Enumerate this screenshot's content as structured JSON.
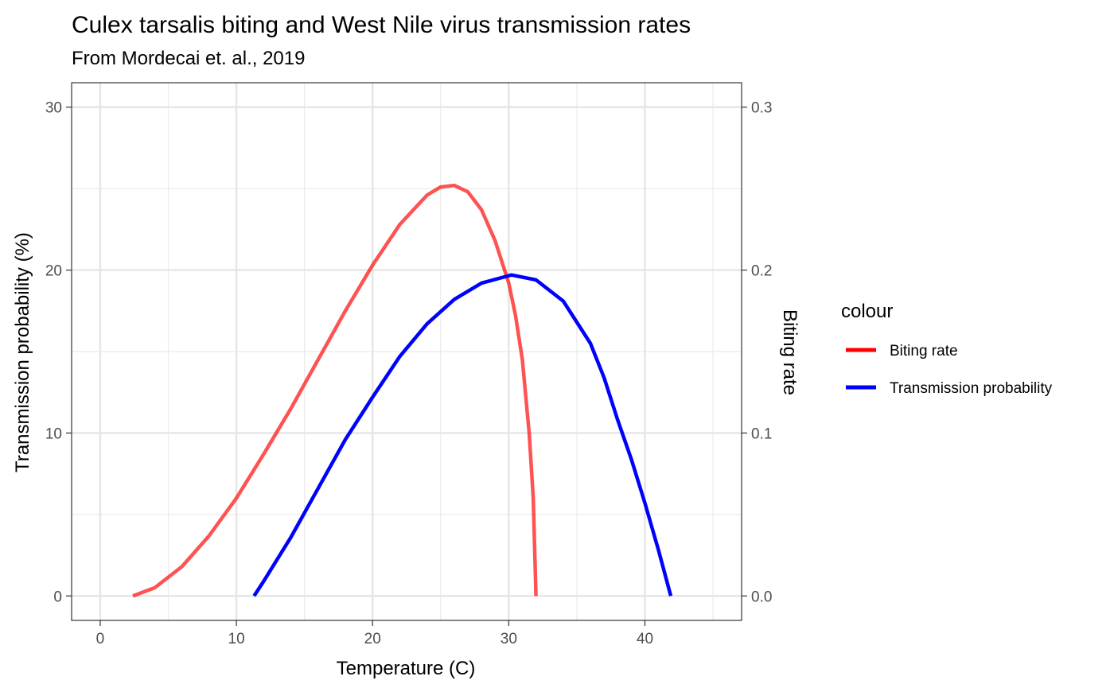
{
  "chart_data": {
    "type": "line",
    "title": "Culex tarsalis biting and West Nile virus transmission rates",
    "subtitle": "From Mordecai et. al., 2019",
    "xlabel": "Temperature (C)",
    "ylabel_left": "Transmission probability (%)",
    "ylabel_right": "Biting rate",
    "xlim": [
      -2.1,
      47.1
    ],
    "ylim": [
      -1.5,
      31.5
    ],
    "secondary_scale_factor": 0.01,
    "x_ticks": [
      0,
      10,
      20,
      30,
      40
    ],
    "y_left_ticks": [
      0,
      10,
      20,
      30
    ],
    "y_right_tick_labels": [
      "0.0",
      "0.1",
      "0.2",
      "0.3"
    ],
    "x_tick_labels": [
      "0",
      "10",
      "20",
      "30",
      "40"
    ],
    "y_left_tick_labels": [
      "0",
      "10",
      "20",
      "30"
    ],
    "grid": true,
    "legend": {
      "title": "colour",
      "position": "right",
      "entries": [
        {
          "label": "Biting rate",
          "color": "#ff0000"
        },
        {
          "label": "Transmission probability",
          "color": "#0000ff"
        }
      ]
    },
    "series": [
      {
        "name": "Biting rate",
        "color": "#ff0000",
        "opacity": 0.68,
        "axis": "right",
        "x": [
          2.4,
          4.0,
          6.0,
          8.0,
          10.0,
          12.0,
          14.0,
          16.0,
          18.0,
          20.0,
          22.0,
          24.0,
          25.0,
          26.0,
          27.0,
          28.0,
          29.0,
          30.0,
          30.5,
          31.0,
          31.5,
          31.8,
          32.0
        ],
        "values": [
          0.0,
          0.005,
          0.018,
          0.037,
          0.06,
          0.087,
          0.115,
          0.145,
          0.175,
          0.203,
          0.228,
          0.246,
          0.251,
          0.252,
          0.248,
          0.237,
          0.218,
          0.192,
          0.172,
          0.145,
          0.1,
          0.06,
          0.0
        ]
      },
      {
        "name": "Transmission probability",
        "color": "#0000ff",
        "opacity": 1,
        "axis": "left",
        "x": [
          11.3,
          12.0,
          14.0,
          16.0,
          18.0,
          20.0,
          22.0,
          24.0,
          26.0,
          28.0,
          30.2,
          32.0,
          34.0,
          36.0,
          37.0,
          38.0,
          39.0,
          40.0,
          41.0,
          41.9
        ],
        "values": [
          0.0,
          0.9,
          3.6,
          6.6,
          9.6,
          12.2,
          14.7,
          16.7,
          18.2,
          19.2,
          19.7,
          19.4,
          18.1,
          15.5,
          13.4,
          10.8,
          8.4,
          5.7,
          2.8,
          0.0
        ]
      }
    ]
  }
}
